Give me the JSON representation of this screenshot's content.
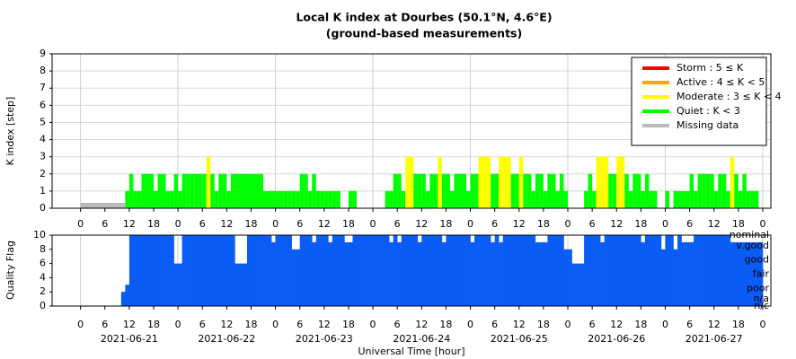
{
  "chart_data": [
    {
      "type": "bar",
      "title": "Local K index at Dourbes (50.1°N, 4.6°E)",
      "subtitle": "(ground-based measurements)",
      "ylabel": "K index [step]",
      "xlim": [
        -7,
        170
      ],
      "ylim": [
        0,
        9
      ],
      "yticks": [
        0,
        1,
        2,
        3,
        4,
        5,
        6,
        7,
        8,
        9
      ],
      "xticks": [
        {
          "value": 0,
          "label": "0"
        },
        {
          "value": 6,
          "label": "6"
        },
        {
          "value": 12,
          "label": "12"
        },
        {
          "value": 18,
          "label": "18"
        },
        {
          "value": 24,
          "label": "0"
        },
        {
          "value": 30,
          "label": "6"
        },
        {
          "value": 36,
          "label": "12"
        },
        {
          "value": 42,
          "label": "18"
        },
        {
          "value": 48,
          "label": "0"
        },
        {
          "value": 54,
          "label": "6"
        },
        {
          "value": 60,
          "label": "12"
        },
        {
          "value": 66,
          "label": "18"
        },
        {
          "value": 72,
          "label": "0"
        },
        {
          "value": 78,
          "label": "6"
        },
        {
          "value": 84,
          "label": "12"
        },
        {
          "value": 90,
          "label": "18"
        },
        {
          "value": 96,
          "label": "0"
        },
        {
          "value": 102,
          "label": "6"
        },
        {
          "value": 108,
          "label": "12"
        },
        {
          "value": 114,
          "label": "18"
        },
        {
          "value": 120,
          "label": "0"
        },
        {
          "value": 126,
          "label": "6"
        },
        {
          "value": 132,
          "label": "12"
        },
        {
          "value": 138,
          "label": "18"
        },
        {
          "value": 144,
          "label": "0"
        },
        {
          "value": 150,
          "label": "6"
        },
        {
          "value": 156,
          "label": "12"
        },
        {
          "value": 162,
          "label": "18"
        },
        {
          "value": 168,
          "label": "0"
        }
      ],
      "xgrid": [
        0,
        24,
        48,
        72,
        96,
        120,
        144,
        168
      ],
      "grid": true,
      "legend": "upper right",
      "levels": [
        {
          "name": "Storm : 5 ≤ K",
          "color": "#ff0000",
          "min": 5
        },
        {
          "name": "Active : 4 ≤ K < 5",
          "color": "#ffa500",
          "min": 4
        },
        {
          "name": "Moderate : 3 ≤ K < 4",
          "color": "#ffff00",
          "min": 3
        },
        {
          "name": "Quiet : K < 3",
          "color": "#00ff00",
          "min": 0
        },
        {
          "name": "Missing data",
          "color": "#bbbbbb"
        }
      ],
      "missing": [
        0,
        11
      ],
      "x": [
        0,
        1,
        2,
        3,
        4,
        5,
        6,
        7,
        8,
        9,
        10,
        11,
        12,
        13,
        14,
        15,
        16,
        17,
        18,
        19,
        20,
        21,
        22,
        23,
        24,
        25,
        26,
        27,
        28,
        29,
        30,
        31,
        32,
        33,
        34,
        35,
        36,
        37,
        38,
        39,
        40,
        41,
        42,
        43,
        44,
        45,
        46,
        47,
        48,
        49,
        50,
        51,
        52,
        53,
        54,
        55,
        56,
        57,
        58,
        59,
        60,
        61,
        62,
        63,
        64,
        65,
        66,
        67,
        68,
        69,
        70,
        71,
        72,
        73,
        74,
        75,
        76,
        77,
        78,
        79,
        80,
        81,
        82,
        83,
        84,
        85,
        86,
        87,
        88,
        89,
        90,
        91,
        92,
        93,
        94,
        95,
        96,
        97,
        98,
        99,
        100,
        101,
        102,
        103,
        104,
        105,
        106,
        107,
        108,
        109,
        110,
        111,
        112,
        113,
        114,
        115,
        116,
        117,
        118,
        119,
        120,
        121,
        122,
        123,
        124,
        125,
        126,
        127,
        128,
        129,
        130,
        131,
        132,
        133,
        134,
        135,
        136,
        137,
        138,
        139,
        140,
        141,
        142,
        143,
        144,
        145,
        146,
        147,
        148,
        149,
        150,
        151,
        152,
        153,
        154,
        155,
        156,
        157,
        158,
        159,
        160,
        161,
        162,
        163,
        164,
        165,
        166,
        167
      ],
      "values": [
        null,
        null,
        null,
        null,
        null,
        null,
        null,
        null,
        null,
        null,
        null,
        1,
        2,
        1,
        1,
        2,
        2,
        2,
        1,
        2,
        2,
        1,
        1,
        2,
        1,
        2,
        2,
        2,
        2,
        2,
        2,
        3,
        2,
        1,
        2,
        2,
        1,
        2,
        2,
        2,
        2,
        2,
        2,
        2,
        2,
        1,
        1,
        1,
        1,
        1,
        1,
        1,
        1,
        1,
        2,
        2,
        1,
        2,
        1,
        1,
        1,
        1,
        1,
        1,
        0,
        0,
        1,
        1,
        0,
        0,
        0,
        0,
        0,
        0,
        0,
        1,
        1,
        2,
        2,
        1,
        3,
        3,
        2,
        2,
        2,
        1,
        2,
        2,
        3,
        2,
        2,
        1,
        2,
        2,
        2,
        1,
        2,
        2,
        3,
        3,
        3,
        2,
        2,
        3,
        3,
        3,
        2,
        2,
        3,
        2,
        2,
        1,
        2,
        2,
        1,
        2,
        2,
        1,
        2,
        1,
        0,
        0,
        0,
        0,
        1,
        2,
        1,
        3,
        3,
        3,
        2,
        2,
        3,
        3,
        2,
        1,
        2,
        2,
        1,
        2,
        1,
        1,
        0,
        0,
        1,
        0,
        1,
        1,
        1,
        1,
        2,
        1,
        2,
        2,
        2,
        2,
        1,
        2,
        2,
        1,
        3,
        2,
        1,
        2,
        1,
        1,
        1,
        0
      ]
    },
    {
      "type": "area",
      "ylabel": "Quality Flag",
      "xlabel": "Universal Time [hour]",
      "color": "#0a5cf5",
      "xlim": [
        -7,
        170
      ],
      "ylim": [
        0,
        10
      ],
      "yticks": [
        0,
        2,
        4,
        6,
        8,
        10
      ],
      "y2ticks": [
        {
          "value": 10,
          "label": "nominal"
        },
        {
          "value": 8.5,
          "label": "v.good"
        },
        {
          "value": 6.5,
          "label": "good"
        },
        {
          "value": 4.5,
          "label": "fair"
        },
        {
          "value": 2.5,
          "label": "poor"
        },
        {
          "value": 1,
          "label": "n/a"
        },
        {
          "value": 0,
          "label": "n/c"
        }
      ],
      "xticks": [
        {
          "value": 0,
          "label": "0"
        },
        {
          "value": 6,
          "label": "6"
        },
        {
          "value": 12,
          "label": "12"
        },
        {
          "value": 18,
          "label": "18"
        },
        {
          "value": 24,
          "label": "0"
        },
        {
          "value": 30,
          "label": "6"
        },
        {
          "value": 36,
          "label": "12"
        },
        {
          "value": 42,
          "label": "18"
        },
        {
          "value": 48,
          "label": "0"
        },
        {
          "value": 54,
          "label": "6"
        },
        {
          "value": 60,
          "label": "12"
        },
        {
          "value": 66,
          "label": "18"
        },
        {
          "value": 72,
          "label": "0"
        },
        {
          "value": 78,
          "label": "6"
        },
        {
          "value": 84,
          "label": "12"
        },
        {
          "value": 90,
          "label": "18"
        },
        {
          "value": 96,
          "label": "0"
        },
        {
          "value": 102,
          "label": "6"
        },
        {
          "value": 108,
          "label": "12"
        },
        {
          "value": 114,
          "label": "18"
        },
        {
          "value": 120,
          "label": "0"
        },
        {
          "value": 126,
          "label": "6"
        },
        {
          "value": 132,
          "label": "12"
        },
        {
          "value": 138,
          "label": "18"
        },
        {
          "value": 144,
          "label": "0"
        },
        {
          "value": 150,
          "label": "6"
        },
        {
          "value": 156,
          "label": "12"
        },
        {
          "value": 162,
          "label": "18"
        },
        {
          "value": 168,
          "label": "0"
        }
      ],
      "dates": [
        {
          "value": 12,
          "label": "2021-06-21"
        },
        {
          "value": 36,
          "label": "2021-06-22"
        },
        {
          "value": 60,
          "label": "2021-06-23"
        },
        {
          "value": 84,
          "label": "2021-06-24"
        },
        {
          "value": 108,
          "label": "2021-06-25"
        },
        {
          "value": 132,
          "label": "2021-06-26"
        },
        {
          "value": 156,
          "label": "2021-06-27"
        }
      ],
      "xgrid": [
        0,
        24,
        48,
        72,
        96,
        120,
        144,
        168
      ],
      "x": [
        0,
        1,
        2,
        3,
        4,
        5,
        6,
        7,
        8,
        9,
        10,
        11,
        12,
        13,
        14,
        15,
        16,
        17,
        18,
        19,
        20,
        21,
        22,
        23,
        24,
        25,
        26,
        27,
        28,
        29,
        30,
        31,
        32,
        33,
        34,
        35,
        36,
        37,
        38,
        39,
        40,
        41,
        42,
        43,
        44,
        45,
        46,
        47,
        48,
        49,
        50,
        51,
        52,
        53,
        54,
        55,
        56,
        57,
        58,
        59,
        60,
        61,
        62,
        63,
        64,
        65,
        66,
        67,
        68,
        69,
        70,
        71,
        72,
        73,
        74,
        75,
        76,
        77,
        78,
        79,
        80,
        81,
        82,
        83,
        84,
        85,
        86,
        87,
        88,
        89,
        90,
        91,
        92,
        93,
        94,
        95,
        96,
        97,
        98,
        99,
        100,
        101,
        102,
        103,
        104,
        105,
        106,
        107,
        108,
        109,
        110,
        111,
        112,
        113,
        114,
        115,
        116,
        117,
        118,
        119,
        120,
        121,
        122,
        123,
        124,
        125,
        126,
        127,
        128,
        129,
        130,
        131,
        132,
        133,
        134,
        135,
        136,
        137,
        138,
        139,
        140,
        141,
        142,
        143,
        144,
        145,
        146,
        147,
        148,
        149,
        150,
        151,
        152,
        153,
        154,
        155,
        156,
        157,
        158,
        159,
        160,
        161,
        162,
        163,
        164,
        165,
        166,
        167
      ],
      "values": [
        0,
        0,
        0,
        0,
        0,
        0,
        0,
        0,
        0,
        0,
        2,
        3,
        10,
        10,
        10,
        10,
        10,
        10,
        10,
        10,
        10,
        10,
        10,
        6,
        6,
        10,
        10,
        10,
        10,
        10,
        10,
        10,
        10,
        10,
        10,
        10,
        10,
        10,
        6,
        6,
        6,
        10,
        10,
        10,
        10,
        10,
        10,
        9,
        10,
        10,
        10,
        10,
        8,
        8,
        10,
        10,
        10,
        9,
        10,
        10,
        10,
        9,
        10,
        10,
        10,
        9,
        9,
        10,
        10,
        10,
        10,
        10,
        10,
        10,
        10,
        10,
        9,
        10,
        9,
        10,
        10,
        10,
        10,
        9,
        10,
        10,
        10,
        10,
        10,
        9,
        10,
        10,
        10,
        10,
        10,
        10,
        9,
        10,
        10,
        10,
        10,
        9,
        10,
        9,
        10,
        10,
        10,
        10,
        10,
        10,
        10,
        10,
        9,
        9,
        9,
        10,
        10,
        10,
        10,
        8,
        8,
        6,
        6,
        6,
        10,
        10,
        10,
        10,
        9,
        10,
        10,
        10,
        10,
        10,
        10,
        10,
        10,
        10,
        9,
        10,
        10,
        10,
        10,
        8,
        10,
        10,
        8,
        10,
        9,
        9,
        9,
        10,
        10,
        10,
        10,
        10,
        10,
        10,
        10,
        10,
        9,
        9,
        9,
        9,
        9,
        9,
        9,
        9
      ]
    }
  ]
}
